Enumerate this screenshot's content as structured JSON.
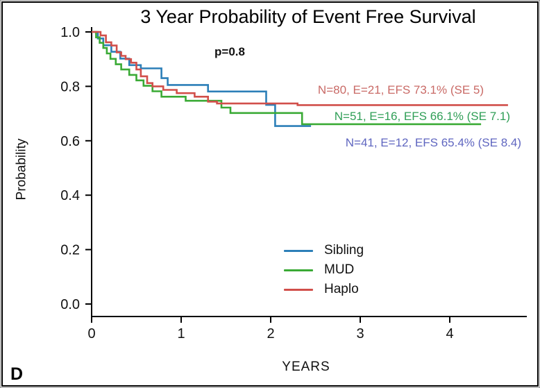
{
  "panel_label": "D",
  "chart_data": {
    "type": "line",
    "subtype": "kaplan-meier-step-survival",
    "title": "3 Year Probability of Event Free Survival",
    "p_value": "p=0.8",
    "xlabel": "YEARS",
    "ylabel": "Probability",
    "xlim": [
      0,
      4.8
    ],
    "ylim": [
      0.0,
      1.0
    ],
    "x_ticks": [
      "0",
      "1",
      "2",
      "3",
      "4"
    ],
    "y_ticks": [
      "1.0",
      "0.8",
      "0.6",
      "0.4",
      "0.2",
      "0.0"
    ],
    "grid": false,
    "legend_position": "inside-bottom-center",
    "annotations": [
      {
        "text": "N=80, E=21, EFS 73.1% (SE 5)",
        "color": "#c96a66",
        "series": "Haplo"
      },
      {
        "text": "N=51, E=16, EFS 66.1% (SE 7.1)",
        "color": "#2f9e56",
        "series": "MUD"
      },
      {
        "text": "N=41, E=12, EFS 65.4% (SE 8.4)",
        "color": "#5f66c0",
        "series": "Sibling"
      }
    ],
    "series": [
      {
        "name": "Sibling",
        "color": "#2c7fb8",
        "efs_percent": 65.4,
        "n": 41,
        "events": 12,
        "se": 8.4,
        "end_x": 2.45,
        "points": [
          [
            0,
            1.0
          ],
          [
            0.07,
            0.976
          ],
          [
            0.13,
            0.951
          ],
          [
            0.22,
            0.927
          ],
          [
            0.32,
            0.902
          ],
          [
            0.42,
            0.878
          ],
          [
            0.55,
            0.866
          ],
          [
            0.78,
            0.83
          ],
          [
            0.85,
            0.805
          ],
          [
            1.3,
            0.781
          ],
          [
            1.95,
            0.732
          ],
          [
            2.05,
            0.654
          ]
        ]
      },
      {
        "name": "MUD",
        "color": "#3aaa35",
        "efs_percent": 66.1,
        "n": 51,
        "events": 16,
        "se": 7.1,
        "end_x": 4.35,
        "points": [
          [
            0,
            1.0
          ],
          [
            0.05,
            0.98
          ],
          [
            0.09,
            0.96
          ],
          [
            0.13,
            0.941
          ],
          [
            0.17,
            0.921
          ],
          [
            0.21,
            0.901
          ],
          [
            0.27,
            0.881
          ],
          [
            0.33,
            0.862
          ],
          [
            0.42,
            0.842
          ],
          [
            0.5,
            0.822
          ],
          [
            0.58,
            0.802
          ],
          [
            0.68,
            0.782
          ],
          [
            0.78,
            0.762
          ],
          [
            1.05,
            0.747
          ],
          [
            1.45,
            0.722
          ],
          [
            1.55,
            0.702
          ],
          [
            2.35,
            0.661
          ]
        ]
      },
      {
        "name": "Haplo",
        "color": "#d14f4a",
        "efs_percent": 73.1,
        "n": 80,
        "events": 21,
        "se": 5,
        "end_x": 4.65,
        "points": [
          [
            0,
            1.0
          ],
          [
            0.1,
            0.987
          ],
          [
            0.16,
            0.962
          ],
          [
            0.22,
            0.95
          ],
          [
            0.28,
            0.925
          ],
          [
            0.33,
            0.912
          ],
          [
            0.38,
            0.9
          ],
          [
            0.44,
            0.887
          ],
          [
            0.5,
            0.862
          ],
          [
            0.55,
            0.837
          ],
          [
            0.62,
            0.812
          ],
          [
            0.68,
            0.8
          ],
          [
            0.8,
            0.787
          ],
          [
            0.95,
            0.775
          ],
          [
            1.15,
            0.762
          ],
          [
            1.3,
            0.744
          ],
          [
            1.4,
            0.737
          ],
          [
            2.3,
            0.731
          ]
        ]
      }
    ]
  }
}
